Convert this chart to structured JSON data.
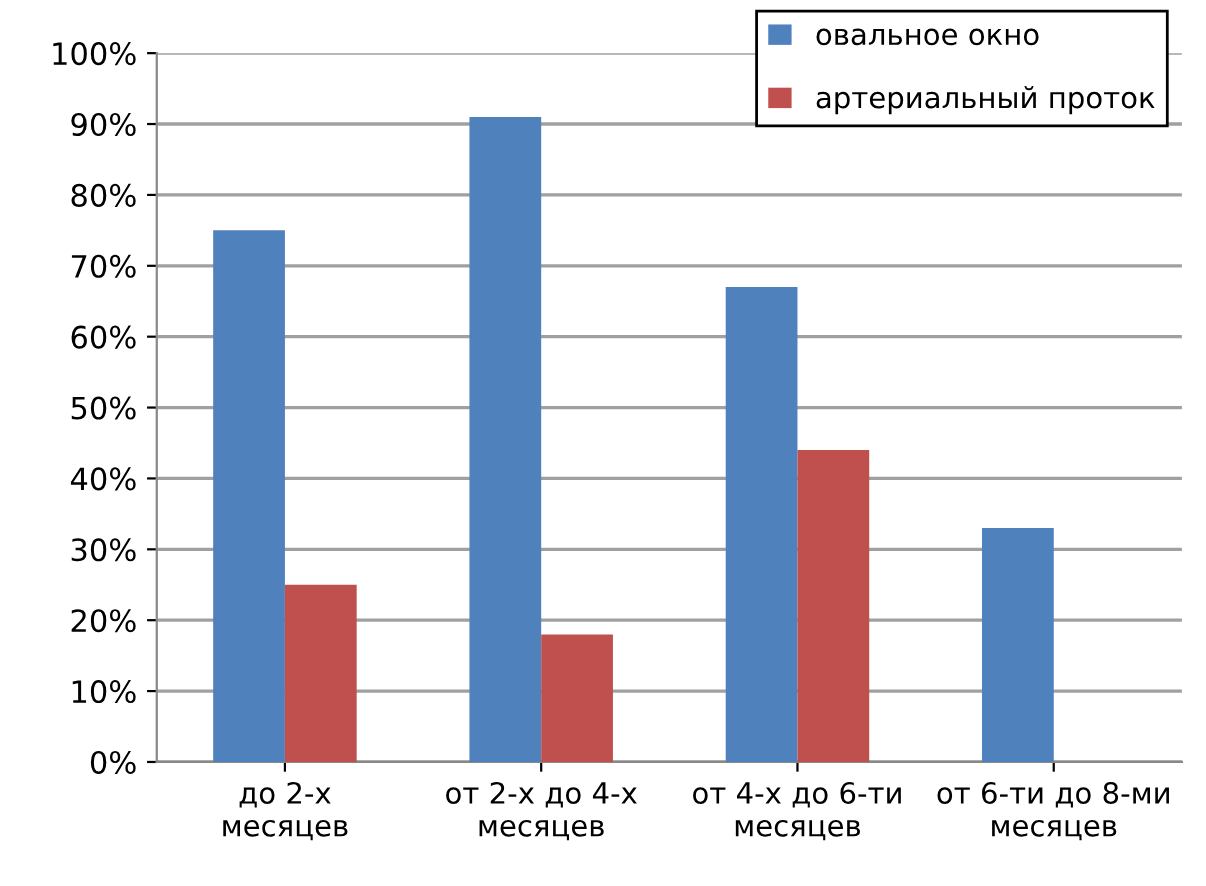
{
  "chart_data": {
    "type": "bar",
    "categories": [
      "до 2-х месяцев",
      "от 2-х до 4-х месяцев",
      "от 4-х до 6-ти месяцев",
      "от 6-ти до 8-ми месяцев"
    ],
    "series": [
      {
        "name": "овальное окно",
        "color": "#4f81bd",
        "values": [
          75,
          91,
          67,
          33
        ]
      },
      {
        "name": "артериальный проток",
        "color": "#c0504d",
        "values": [
          25,
          18,
          44,
          0
        ]
      }
    ],
    "ylim": [
      0,
      100
    ],
    "yticks": [
      {
        "value": 0,
        "label": "0%"
      },
      {
        "value": 10,
        "label": "10%"
      },
      {
        "value": 20,
        "label": "20%"
      },
      {
        "value": 30,
        "label": "30%"
      },
      {
        "value": 40,
        "label": "40%"
      },
      {
        "value": 50,
        "label": "50%"
      },
      {
        "value": 60,
        "label": "60%"
      },
      {
        "value": 70,
        "label": "70%"
      },
      {
        "value": 80,
        "label": "80%"
      },
      {
        "value": 90,
        "label": "90%"
      },
      {
        "value": 100,
        "label": "100%"
      }
    ],
    "grid": "y",
    "legend": "top right"
  }
}
